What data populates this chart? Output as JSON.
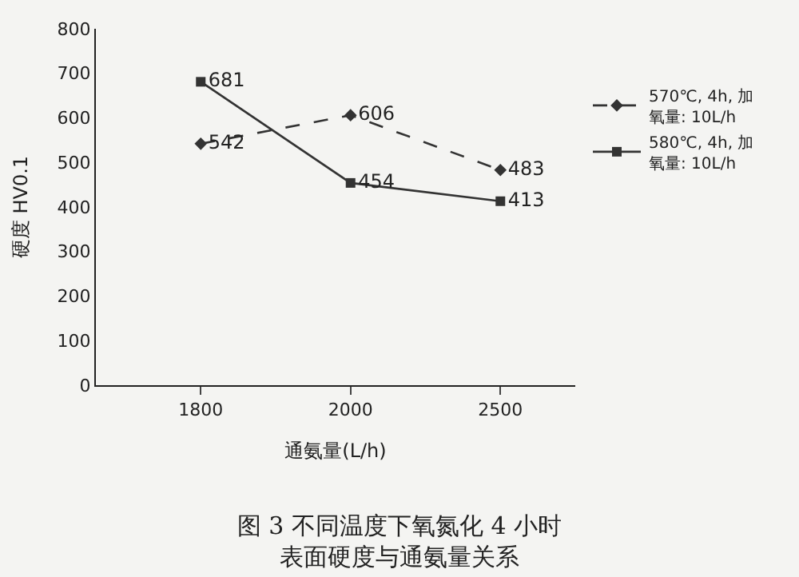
{
  "chart_data": {
    "type": "line",
    "title": "图 3 不同温度下氧氮化 4 小时表面硬度与通氨量关系",
    "xlabel": "通氨量(L/h)",
    "ylabel": "硬度 HV0.1",
    "categories": [
      "1800",
      "2000",
      "2500"
    ],
    "series": [
      {
        "name": "570℃, 4h, 加氧量: 10L/h",
        "color": "#333333",
        "values": [
          542,
          606,
          483
        ],
        "marker": "diamond",
        "line_style": "dashed"
      },
      {
        "name": "580℃, 4h, 加氧量: 10L/h",
        "color": "#333333",
        "values": [
          681,
          454,
          413
        ],
        "marker": "square",
        "line_style": "solid"
      }
    ],
    "ylim": [
      0,
      800
    ],
    "yticks": [
      0,
      100,
      200,
      300,
      400,
      500,
      600,
      700,
      800
    ],
    "data_labels": true,
    "legend": "right",
    "grid": false
  }
}
